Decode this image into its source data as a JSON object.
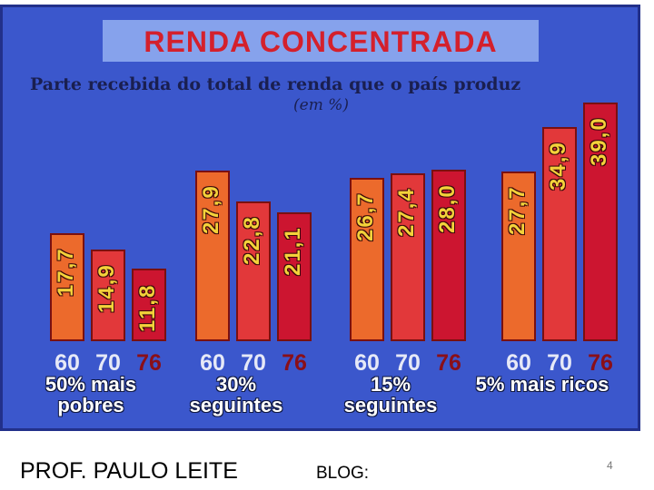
{
  "chart_data": {
    "type": "bar",
    "title": "RENDA CONCENTRADA",
    "subtitle": "Parte recebida do total de renda que o país produz",
    "unit": "(em %)",
    "categories": [
      "50% mais pobres",
      "30% seguintes",
      "15% seguintes",
      "5% mais ricos"
    ],
    "series": [
      {
        "name": "60",
        "color": "#ec6a2c",
        "values": [
          17.7,
          27.9,
          26.7,
          27.7
        ],
        "value_labels": [
          "17,7",
          "27,9",
          "26,7",
          "27,7"
        ]
      },
      {
        "name": "70",
        "color": "#e2383a",
        "values": [
          14.9,
          22.8,
          27.4,
          34.9
        ],
        "value_labels": [
          "14,9",
          "22,8",
          "27,4",
          "34,9"
        ]
      },
      {
        "name": "76",
        "color": "#cc1530",
        "values": [
          11.8,
          21.1,
          28.0,
          39.0
        ],
        "value_labels": [
          "11,8",
          "21,1",
          "28,0",
          "39,0"
        ]
      }
    ]
  },
  "footer": {
    "author": "PROF. PAULO LEITE",
    "blog": "BLOG:",
    "page": "4"
  }
}
